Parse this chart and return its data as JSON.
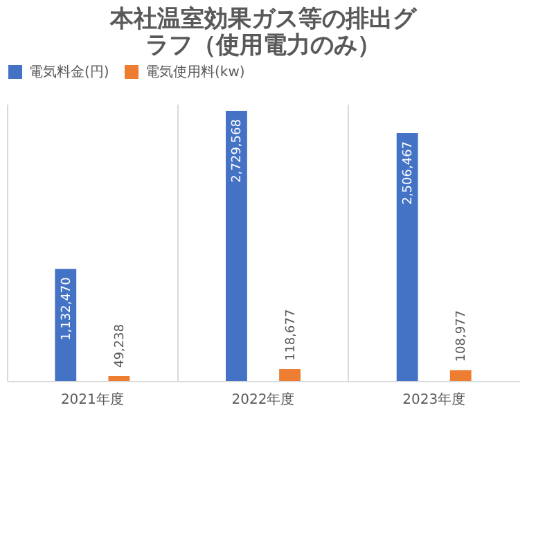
{
  "chart_data": {
    "type": "bar",
    "title": "本社温室効果ガス等の排出グラフ（使用電力のみ）",
    "categories": [
      "2021年度",
      "2022年度",
      "2023年度"
    ],
    "series": [
      {
        "name": "電気料金(円)",
        "color": "#4472c4",
        "values": [
          1132470,
          2729568,
          2506467
        ],
        "value_labels": [
          "1,132,470",
          "2,729,568",
          "2,506,467"
        ]
      },
      {
        "name": "電気使用料(kw)",
        "color": "#ed7d31",
        "values": [
          49238,
          118677,
          108977
        ],
        "value_labels": [
          "49,238",
          "118,677",
          "108,977"
        ]
      }
    ],
    "grid": "x",
    "legend": "top"
  }
}
